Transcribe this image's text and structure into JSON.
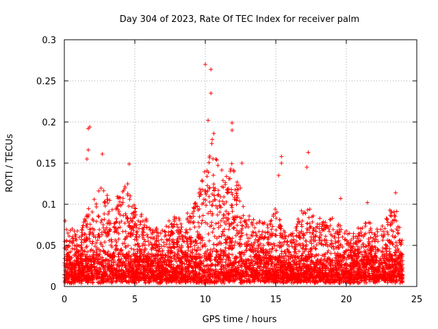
{
  "chart_data": {
    "type": "scatter",
    "title": "Day 304 of 2023, Rate Of TEC Index for receiver palm",
    "xlabel": "GPS time / hours",
    "ylabel": "ROTI / TECUs",
    "xlim": [
      0,
      25
    ],
    "ylim": [
      0,
      0.3
    ],
    "x_ticks": [
      0,
      5,
      10,
      15,
      20,
      25
    ],
    "x_tick_labels": [
      "0",
      "5",
      "10",
      "15",
      "20",
      "25"
    ],
    "y_ticks": [
      0,
      0.05,
      0.1,
      0.15,
      0.2,
      0.25,
      0.3
    ],
    "y_tick_labels": [
      "0",
      "0.05",
      "0.1",
      "0.15",
      "0.2",
      "0.25",
      "0.3"
    ],
    "grid": true,
    "marker": "+",
    "color": "#ff0000",
    "x_range_data": [
      0,
      24
    ],
    "notable_points": [
      {
        "x": 10.0,
        "y": 0.27
      },
      {
        "x": 10.4,
        "y": 0.264
      },
      {
        "x": 10.4,
        "y": 0.235
      },
      {
        "x": 10.2,
        "y": 0.202
      },
      {
        "x": 11.9,
        "y": 0.199
      },
      {
        "x": 1.8,
        "y": 0.194
      },
      {
        "x": 1.7,
        "y": 0.192
      },
      {
        "x": 11.9,
        "y": 0.19
      },
      {
        "x": 10.6,
        "y": 0.186
      },
      {
        "x": 1.7,
        "y": 0.166
      },
      {
        "x": 17.3,
        "y": 0.163
      },
      {
        "x": 2.7,
        "y": 0.161
      },
      {
        "x": 15.4,
        "y": 0.158
      },
      {
        "x": 1.6,
        "y": 0.155
      },
      {
        "x": 15.4,
        "y": 0.15
      },
      {
        "x": 4.6,
        "y": 0.149
      },
      {
        "x": 12.6,
        "y": 0.15
      },
      {
        "x": 17.2,
        "y": 0.145
      },
      {
        "x": 15.2,
        "y": 0.135
      },
      {
        "x": 23.5,
        "y": 0.114
      },
      {
        "x": 21.5,
        "y": 0.102
      },
      {
        "x": 19.6,
        "y": 0.107
      }
    ],
    "envelope": {
      "hours": [
        0,
        0.5,
        1,
        1.5,
        2,
        2.5,
        3,
        3.5,
        4,
        4.5,
        5,
        5.5,
        6,
        6.5,
        7,
        7.5,
        8,
        8.5,
        9,
        9.5,
        10,
        10.5,
        11,
        11.5,
        12,
        12.5,
        13,
        13.5,
        14,
        14.5,
        15,
        15.5,
        16,
        16.5,
        17,
        17.5,
        18,
        18.5,
        19,
        19.5,
        20,
        20.5,
        21,
        21.5,
        22,
        22.5,
        23,
        23.5,
        24
      ],
      "max_roti": [
        0.082,
        0.07,
        0.065,
        0.09,
        0.1,
        0.13,
        0.11,
        0.1,
        0.12,
        0.13,
        0.1,
        0.09,
        0.075,
        0.07,
        0.072,
        0.08,
        0.09,
        0.085,
        0.09,
        0.11,
        0.16,
        0.18,
        0.14,
        0.14,
        0.15,
        0.12,
        0.085,
        0.08,
        0.08,
        0.085,
        0.1,
        0.07,
        0.065,
        0.08,
        0.1,
        0.09,
        0.085,
        0.08,
        0.085,
        0.075,
        0.07,
        0.065,
        0.07,
        0.08,
        0.07,
        0.07,
        0.09,
        0.095,
        0.07
      ],
      "baseline_roti": 0.01
    }
  }
}
